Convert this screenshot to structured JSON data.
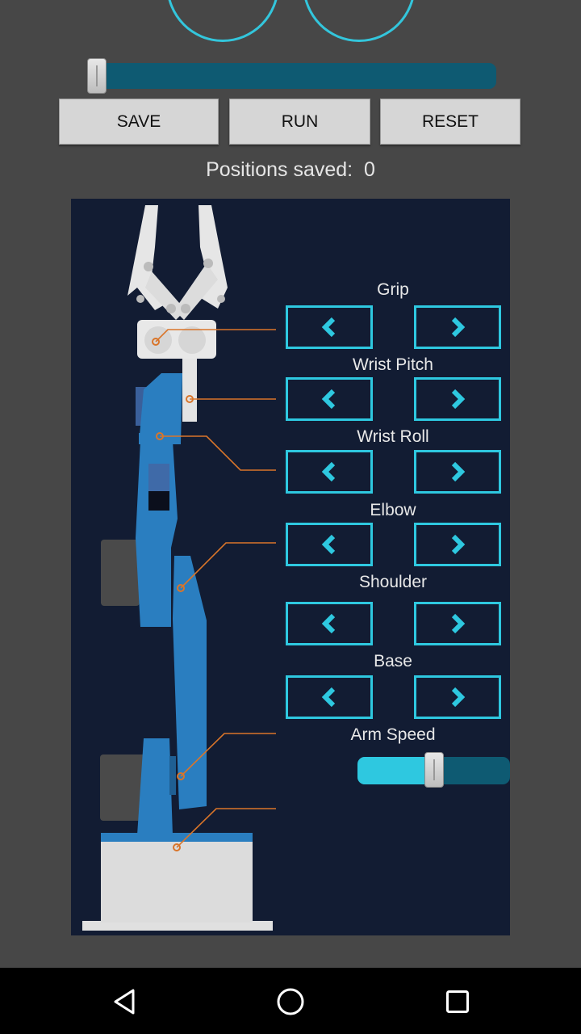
{
  "joysticks": {
    "left_name": "left-joystick",
    "right_name": "right-joystick"
  },
  "top_slider": {
    "value": 0.0
  },
  "buttons": {
    "save": "SAVE",
    "run": "RUN",
    "reset": "RESET"
  },
  "positions": {
    "label": "Positions saved:",
    "count": "0"
  },
  "joints": [
    {
      "label": "Grip"
    },
    {
      "label": "Wrist Pitch"
    },
    {
      "label": "Wrist Roll"
    },
    {
      "label": "Elbow"
    },
    {
      "label": "Shoulder"
    },
    {
      "label": "Base"
    }
  ],
  "arm_speed": {
    "label": "Arm Speed",
    "value": 0.5
  },
  "colors": {
    "accent": "#2ec8e0",
    "panel": "#121c33",
    "arm_blue": "#2a7ec0",
    "leader": "#d9752a"
  },
  "nav": {
    "back": "back-icon",
    "home": "home-icon",
    "recents": "recents-icon"
  }
}
